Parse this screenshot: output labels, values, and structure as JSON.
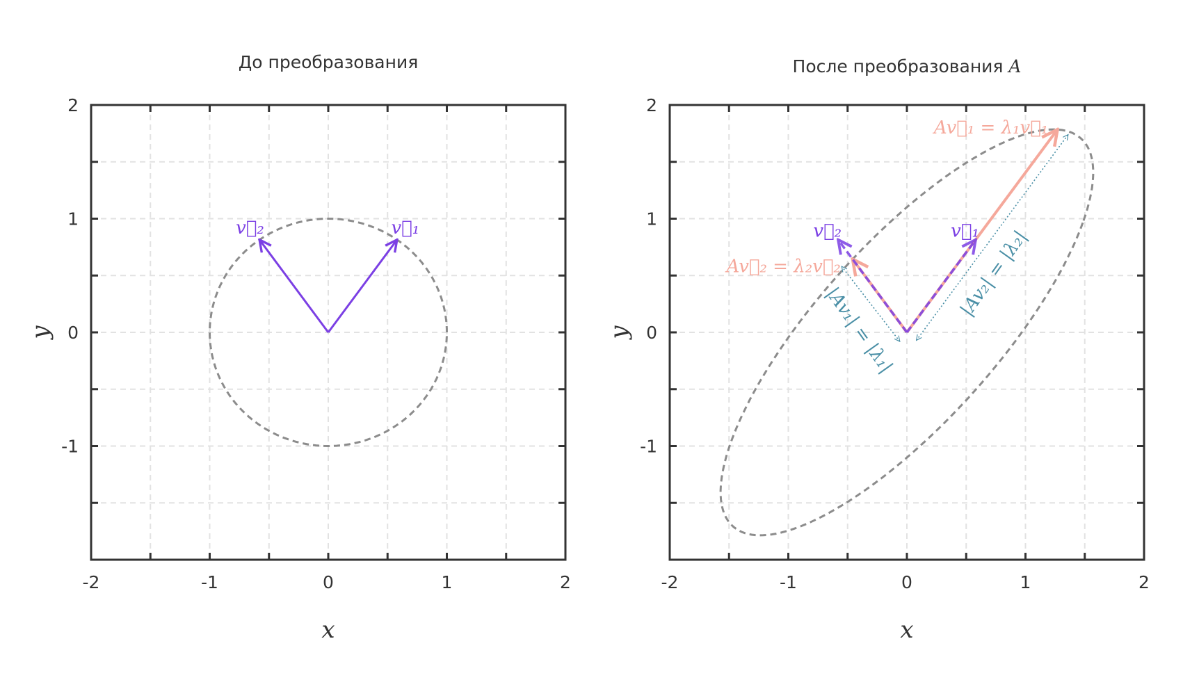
{
  "chart_data": [
    {
      "type": "line",
      "title": "До преобразования",
      "xlabel": "x",
      "ylabel": "y",
      "xlim": [
        -2,
        2
      ],
      "ylim": [
        -2,
        2
      ],
      "xticks": [
        "-2",
        "-1",
        "0",
        "1",
        "2"
      ],
      "yticks": [
        "2",
        "1",
        "0",
        "-1"
      ],
      "grid": true,
      "curve": {
        "kind": "unit-circle",
        "radius": 1,
        "color": "#8c8c8c",
        "style": "dashed"
      },
      "vectors": [
        {
          "label": "v⃗₁",
          "x": 0.58,
          "y": 0.815,
          "color": "#7b3fe4"
        },
        {
          "label": "v⃗₂",
          "x": -0.58,
          "y": 0.815,
          "color": "#7b3fe4"
        }
      ]
    },
    {
      "type": "line",
      "title": "После преобразования",
      "title_math": "A",
      "xlabel": "x",
      "ylabel": "y",
      "xlim": [
        -2,
        2
      ],
      "ylim": [
        -2,
        2
      ],
      "xticks": [
        "-2",
        "-1",
        "0",
        "1",
        "2"
      ],
      "yticks": [
        "2",
        "1",
        "0",
        "-1"
      ],
      "grid": true,
      "eigenvalues": [
        2.19,
        0.79
      ],
      "curve": {
        "kind": "transformed-unit-circle",
        "color": "#8c8c8c",
        "style": "dashed"
      },
      "vectors": [
        {
          "label": "v⃗₁",
          "x": 0.58,
          "y": 0.815,
          "color": "#7b3fe4",
          "style": "dashed"
        },
        {
          "label": "v⃗₂",
          "x": -0.58,
          "y": 0.815,
          "color": "#7b3fe4",
          "style": "dashed"
        },
        {
          "label": "Av⃗₁ = λ₁v⃗₁",
          "x": 1.27,
          "y": 1.785,
          "color": "#f5a89b"
        },
        {
          "label": "Av⃗₂ = λ₂v⃗₂",
          "x": -0.458,
          "y": 0.644,
          "color": "#f5a89b"
        }
      ],
      "annotations": [
        {
          "label": "|Av₂| = |λ₂|",
          "color": "#4a8fa6"
        },
        {
          "label": "|Av₁| = |λ₁|",
          "color": "#4a8fa6"
        }
      ]
    }
  ]
}
